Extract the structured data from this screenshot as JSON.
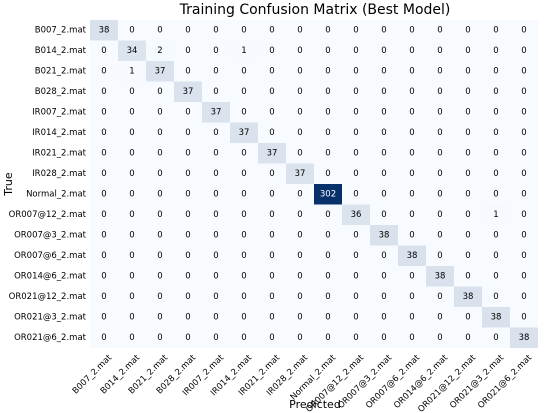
{
  "chart_data": {
    "type": "heatmap",
    "title": "Training Confusion Matrix (Best Model)",
    "xlabel": "Predicted",
    "ylabel": "True",
    "labels": [
      "B007_2.mat",
      "B014_2.mat",
      "B021_2.mat",
      "B028_2.mat",
      "IR007_2.mat",
      "IR014_2.mat",
      "IR021_2.mat",
      "IR028_2.mat",
      "Normal_2.mat",
      "OR007@12_2.mat",
      "OR007@3_2.mat",
      "OR007@6_2.mat",
      "OR014@6_2.mat",
      "OR021@12_2.mat",
      "OR021@3_2.mat",
      "OR021@6_2.mat"
    ],
    "matrix": [
      [
        38,
        0,
        0,
        0,
        0,
        0,
        0,
        0,
        0,
        0,
        0,
        0,
        0,
        0,
        0,
        0
      ],
      [
        0,
        34,
        2,
        0,
        0,
        1,
        0,
        0,
        0,
        0,
        0,
        0,
        0,
        0,
        0,
        0
      ],
      [
        0,
        1,
        37,
        0,
        0,
        0,
        0,
        0,
        0,
        0,
        0,
        0,
        0,
        0,
        0,
        0
      ],
      [
        0,
        0,
        0,
        37,
        0,
        0,
        0,
        0,
        0,
        0,
        0,
        0,
        0,
        0,
        0,
        0
      ],
      [
        0,
        0,
        0,
        0,
        37,
        0,
        0,
        0,
        0,
        0,
        0,
        0,
        0,
        0,
        0,
        0
      ],
      [
        0,
        0,
        0,
        0,
        0,
        37,
        0,
        0,
        0,
        0,
        0,
        0,
        0,
        0,
        0,
        0
      ],
      [
        0,
        0,
        0,
        0,
        0,
        0,
        37,
        0,
        0,
        0,
        0,
        0,
        0,
        0,
        0,
        0
      ],
      [
        0,
        0,
        0,
        0,
        0,
        0,
        0,
        37,
        0,
        0,
        0,
        0,
        0,
        0,
        0,
        0
      ],
      [
        0,
        0,
        0,
        0,
        0,
        0,
        0,
        0,
        302,
        0,
        0,
        0,
        0,
        0,
        0,
        0
      ],
      [
        0,
        0,
        0,
        0,
        0,
        0,
        0,
        0,
        0,
        36,
        0,
        0,
        0,
        0,
        1,
        0
      ],
      [
        0,
        0,
        0,
        0,
        0,
        0,
        0,
        0,
        0,
        0,
        38,
        0,
        0,
        0,
        0,
        0
      ],
      [
        0,
        0,
        0,
        0,
        0,
        0,
        0,
        0,
        0,
        0,
        0,
        38,
        0,
        0,
        0,
        0
      ],
      [
        0,
        0,
        0,
        0,
        0,
        0,
        0,
        0,
        0,
        0,
        0,
        0,
        38,
        0,
        0,
        0
      ],
      [
        0,
        0,
        0,
        0,
        0,
        0,
        0,
        0,
        0,
        0,
        0,
        0,
        0,
        38,
        0,
        0
      ],
      [
        0,
        0,
        0,
        0,
        0,
        0,
        0,
        0,
        0,
        0,
        0,
        0,
        0,
        0,
        38,
        0
      ],
      [
        0,
        0,
        0,
        0,
        0,
        0,
        0,
        0,
        0,
        0,
        0,
        0,
        0,
        0,
        0,
        38
      ]
    ],
    "colormap": "Blues",
    "colors": {
      "low": "#f7fbff",
      "high": "#08306b"
    },
    "legend": "none"
  }
}
